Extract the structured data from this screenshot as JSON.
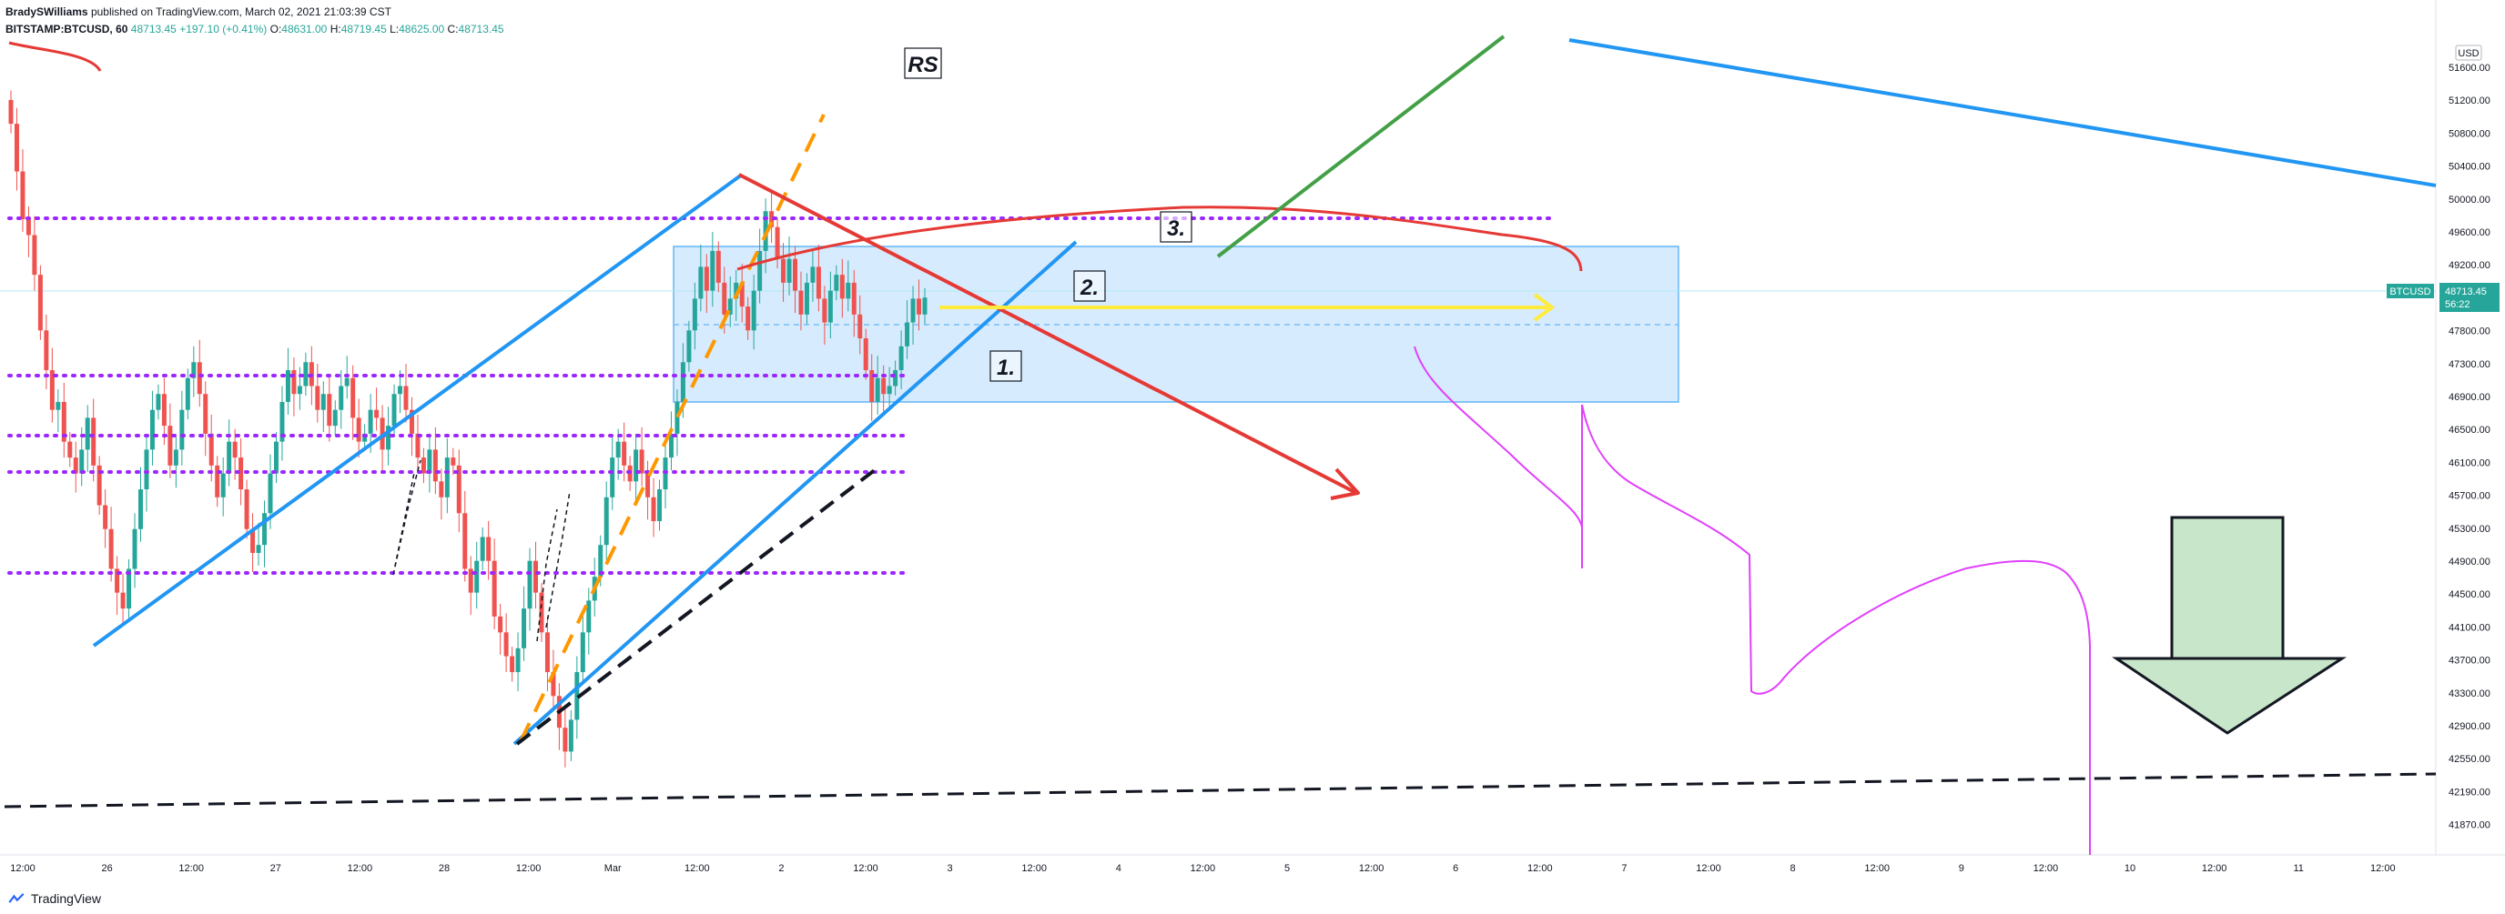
{
  "header": {
    "author": "BradySWilliams",
    "published": "published on TradingView.com, March 02, 2021 21:03:39 CST",
    "symbol": "BITSTAMP:BTCUSD, 60",
    "last": "48713.45",
    "change": "+197.10 (+0.41%)",
    "open_label": "O:",
    "open": "48631.00",
    "high_label": "H:",
    "high": "48719.45",
    "low_label": "L:",
    "low": "48625.00",
    "close_label": "C:",
    "close": "48713.45"
  },
  "footer": {
    "brand": "TradingView"
  },
  "price_scale": {
    "currency": "USD",
    "ticks": [
      "51600.00",
      "51200.00",
      "50800.00",
      "50400.00",
      "50000.00",
      "49600.00",
      "49200.00",
      "48300.00",
      "47800.00",
      "47300.00",
      "46900.00",
      "46500.00",
      "46100.00",
      "45700.00",
      "45300.00",
      "44900.00",
      "44500.00",
      "44100.00",
      "43700.00",
      "43300.00",
      "42900.00",
      "42550.00",
      "42190.00",
      "41870.00"
    ],
    "last_price": {
      "symbol": "BTCUSD",
      "price": "48713.45",
      "countdown": "56:22"
    }
  },
  "time_scale": {
    "ticks": [
      "12:00",
      "26",
      "12:00",
      "27",
      "12:00",
      "28",
      "12:00",
      "Mar",
      "12:00",
      "2",
      "12:00",
      "3",
      "12:00",
      "4",
      "12:00",
      "5",
      "12:00",
      "6",
      "12:00",
      "7",
      "12:00",
      "8",
      "12:00",
      "9",
      "12:00",
      "10",
      "12:00",
      "11",
      "12:00"
    ]
  },
  "annotations": {
    "rs": "RS",
    "one": "1.",
    "two": "2.",
    "three": "3."
  },
  "colors": {
    "up": "#26a69a",
    "down": "#ef5350",
    "zone": "#bbdefb",
    "zone_border": "#64b5f6",
    "channel": "#2196f3",
    "purple_level": "#9c27ff",
    "orange": "#ff9800",
    "yellow": "#ffeb3b",
    "green": "#43a047",
    "red": "#e53935",
    "magenta": "#e040fb",
    "arrow_fill": "#c8e6c9",
    "arrow_stroke": "#1b1b1b"
  },
  "chart_data": {
    "type": "candlestick",
    "symbol": "BITSTAMP:BTCUSD",
    "interval": "60",
    "x_ticks": [
      "12:00",
      "26",
      "12:00",
      "27",
      "12:00",
      "28",
      "12:00",
      "Mar",
      "12:00",
      "2",
      "12:00",
      "3",
      "12:00",
      "4",
      "12:00",
      "5",
      "12:00",
      "6",
      "12:00",
      "7",
      "12:00",
      "8",
      "12:00",
      "9",
      "12:00",
      "10",
      "12:00",
      "11",
      "12:00"
    ],
    "ylim": [
      41700,
      52000
    ],
    "last": {
      "open": 48631.0,
      "high": 48719.45,
      "low": 48625.0,
      "close": 48713.45,
      "change": 197.1,
      "change_pct": 0.41
    },
    "closes": [
      50900,
      50300,
      49700,
      49500,
      49000,
      48300,
      47800,
      47300,
      47400,
      46900,
      46700,
      46500,
      46800,
      47200,
      46600,
      46100,
      45800,
      45300,
      45000,
      44800,
      45300,
      45800,
      46300,
      46800,
      47300,
      47500,
      47100,
      46600,
      46800,
      47300,
      47700,
      47900,
      47500,
      47000,
      46600,
      46200,
      46500,
      46900,
      46700,
      46300,
      45800,
      45500,
      45600,
      46000,
      46500,
      46900,
      47400,
      47800,
      47500,
      47600,
      47900,
      47600,
      47300,
      47500,
      47100,
      47300,
      47600,
      47700,
      47200,
      46900,
      47000,
      47300,
      47200,
      46800,
      47100,
      47500,
      47600,
      47300,
      47000,
      46700,
      46500,
      46800,
      46400,
      46200,
      46700,
      46600,
      46000,
      45300,
      45000,
      45400,
      45700,
      45400,
      44700,
      44500,
      44200,
      44000,
      44300,
      44800,
      45400,
      45000,
      44500,
      44000,
      43700,
      43300,
      43000,
      43400,
      44000,
      44500,
      44900,
      45200,
      45600,
      46200,
      46700,
      46900,
      46600,
      46400,
      46800,
      46500,
      46200,
      45900,
      46300,
      46700,
      47000,
      47400,
      47900,
      48300,
      48700,
      49100,
      48800,
      49300,
      48900,
      48500,
      48700,
      48900,
      48600,
      48300,
      48800,
      49300,
      49800,
      49600,
      49200,
      48900,
      49200,
      48800,
      48500,
      48900,
      49100,
      48700,
      48400,
      48800,
      49000,
      48700,
      48900,
      48500,
      48200,
      47800,
      47400,
      47700,
      47500,
      47600,
      47800,
      48100,
      48400,
      48700,
      48500,
      48713
    ]
  }
}
